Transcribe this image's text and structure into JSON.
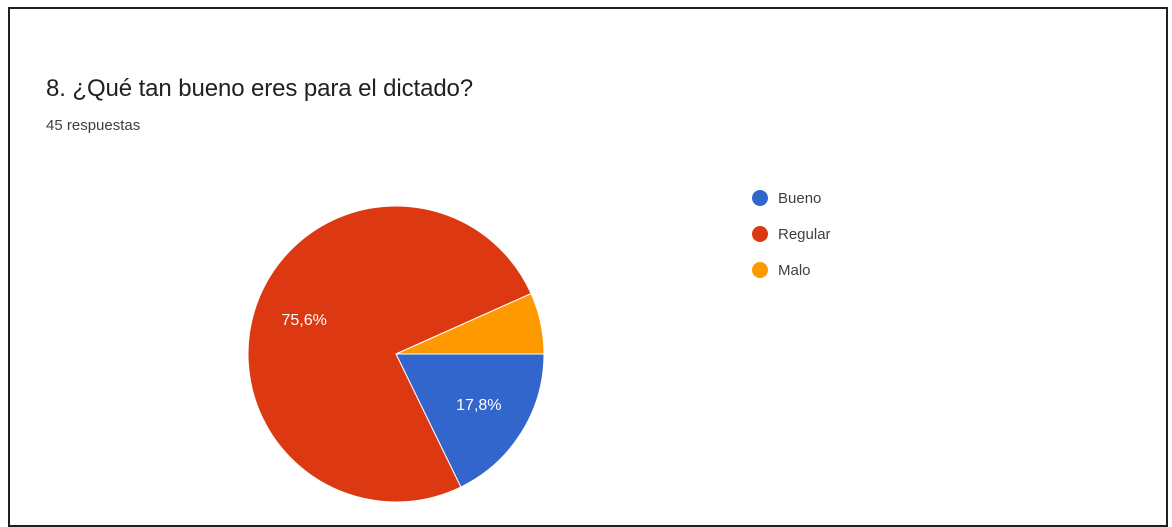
{
  "chart_data": {
    "type": "pie",
    "title": "8. ¿Qué tan bueno eres para el dictado?",
    "subtitle": "45 respuestas",
    "categories": [
      "Bueno",
      "Regular",
      "Malo"
    ],
    "values": [
      17.8,
      75.6,
      6.7
    ],
    "labels": [
      "17,8%",
      "75,6%",
      ""
    ],
    "colors": [
      "#3366cc",
      "#dc3912",
      "#ff9900"
    ],
    "legend_position": "right"
  }
}
